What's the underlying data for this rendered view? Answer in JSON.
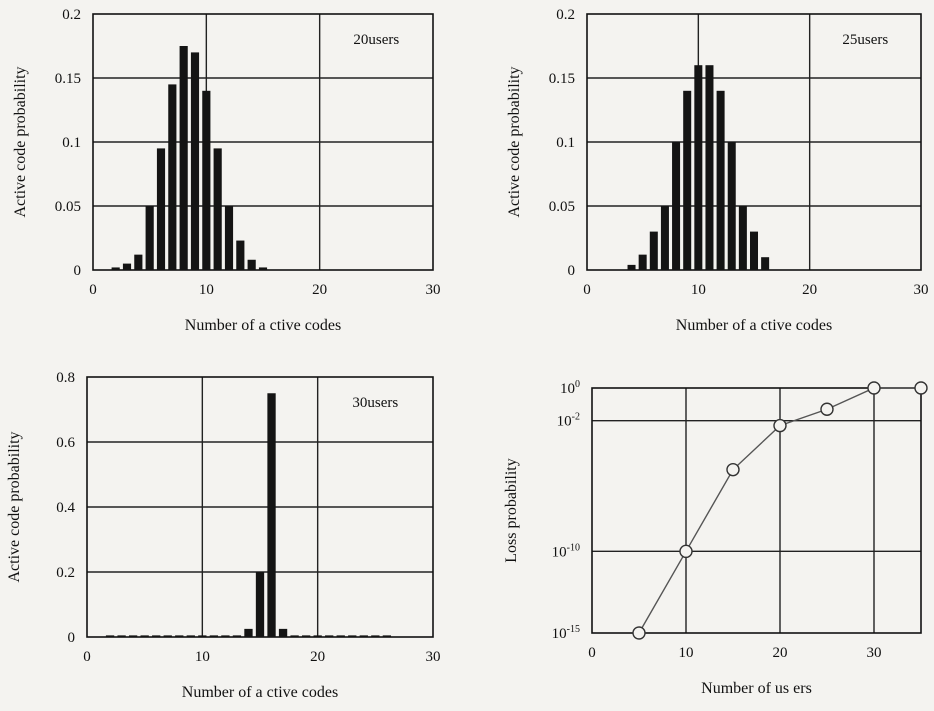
{
  "chart_data": [
    {
      "type": "bar",
      "annotation": "20users",
      "xlabel": "Number of a ctive codes",
      "ylabel": "Active code probability",
      "xlim": [
        0,
        30
      ],
      "ylim": [
        0,
        0.2
      ],
      "xticks": [
        "0",
        "10",
        "20",
        "30"
      ],
      "yticks": [
        "0",
        "0.05",
        "0.1",
        "0.15",
        "0.2"
      ],
      "grid": true,
      "x": [
        2,
        3,
        4,
        5,
        6,
        7,
        8,
        9,
        10,
        11,
        12,
        13,
        14,
        15
      ],
      "values": [
        0.002,
        0.005,
        0.012,
        0.05,
        0.095,
        0.145,
        0.175,
        0.17,
        0.14,
        0.095,
        0.05,
        0.023,
        0.008,
        0.002
      ]
    },
    {
      "type": "bar",
      "annotation": "25users",
      "xlabel": "Number of a ctive codes",
      "ylabel": "Active code probability",
      "xlim": [
        0,
        30
      ],
      "ylim": [
        0,
        0.2
      ],
      "xticks": [
        "0",
        "10",
        "20",
        "30"
      ],
      "yticks": [
        "0",
        "0.05",
        "0.1",
        "0.15",
        "0.2"
      ],
      "grid": true,
      "x": [
        4,
        5,
        6,
        7,
        8,
        9,
        10,
        11,
        12,
        13,
        14,
        15,
        16
      ],
      "values": [
        0.004,
        0.012,
        0.03,
        0.05,
        0.1,
        0.14,
        0.16,
        0.16,
        0.14,
        0.1,
        0.05,
        0.03,
        0.01
      ]
    },
    {
      "type": "bar",
      "annotation": "30users",
      "xlabel": "Number of a ctive codes",
      "ylabel": "Active code probability",
      "xlim": [
        0,
        30
      ],
      "ylim": [
        0,
        0.8
      ],
      "xticks": [
        "0",
        "10",
        "20",
        "30"
      ],
      "yticks": [
        "0",
        "0.2",
        "0.4",
        "0.6",
        "0.8"
      ],
      "grid": true,
      "x": [
        2,
        3,
        4,
        5,
        6,
        7,
        8,
        9,
        10,
        11,
        12,
        13,
        14,
        15,
        16,
        17,
        18,
        19,
        20,
        21,
        22,
        23,
        24,
        25,
        26
      ],
      "values": [
        0.005,
        0.005,
        0.005,
        0.005,
        0.005,
        0.005,
        0.005,
        0.005,
        0.005,
        0.005,
        0.005,
        0.005,
        0.025,
        0.2,
        0.75,
        0.025,
        0.005,
        0.005,
        0.005,
        0.005,
        0.005,
        0.005,
        0.005,
        0.005,
        0.005
      ]
    },
    {
      "type": "line",
      "xlabel": "Number of us ers",
      "ylabel": "Loss probability",
      "yscale": "log",
      "xlim": [
        0,
        35
      ],
      "ylim": [
        1e-15,
        1
      ],
      "xticks": [
        "0",
        "10",
        "20",
        "30"
      ],
      "yticks": [
        {
          "base": "10",
          "exp": "0"
        },
        {
          "base": "10",
          "exp": "-2"
        },
        {
          "base": "10",
          "exp": "-10"
        },
        {
          "base": "10",
          "exp": "-15"
        }
      ],
      "grid": true,
      "series": [
        {
          "x": [
            5,
            10,
            15,
            20,
            25,
            30,
            35
          ],
          "values": [
            1e-15,
            1e-10,
            1e-05,
            0.005,
            0.05,
            1,
            1
          ],
          "marker": "open-circle",
          "color": "#555555"
        }
      ]
    }
  ]
}
